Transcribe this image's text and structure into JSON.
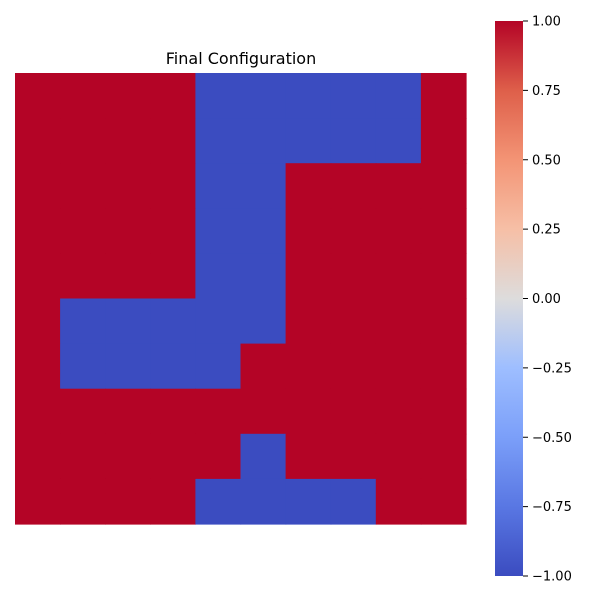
{
  "chart_data": {
    "type": "heatmap",
    "title": "Final Configuration",
    "xlabel": "",
    "ylabel": "",
    "grid": [
      [
        1,
        1,
        1,
        1,
        -1,
        -1,
        -1,
        -1,
        -1,
        1
      ],
      [
        1,
        1,
        1,
        1,
        -1,
        -1,
        -1,
        -1,
        -1,
        1
      ],
      [
        1,
        1,
        1,
        1,
        -1,
        -1,
        1,
        1,
        1,
        1
      ],
      [
        1,
        1,
        1,
        1,
        -1,
        -1,
        1,
        1,
        1,
        1
      ],
      [
        1,
        1,
        1,
        1,
        -1,
        -1,
        1,
        1,
        1,
        1
      ],
      [
        1,
        -1,
        -1,
        -1,
        -1,
        -1,
        1,
        1,
        1,
        1
      ],
      [
        1,
        -1,
        -1,
        -1,
        -1,
        1,
        1,
        1,
        1,
        1
      ],
      [
        1,
        1,
        1,
        1,
        1,
        1,
        1,
        1,
        1,
        1
      ],
      [
        1,
        1,
        1,
        1,
        1,
        -1,
        1,
        1,
        1,
        1
      ],
      [
        1,
        1,
        1,
        1,
        -1,
        -1,
        -1,
        -1,
        1,
        1
      ]
    ],
    "value_range": [
      -1,
      1
    ],
    "colormap": "coolwarm",
    "colors": {
      "low": "#3b4cc0",
      "high": "#b40426"
    },
    "colorbar": {
      "ticks": [
        1.0,
        0.75,
        0.5,
        0.25,
        0.0,
        -0.25,
        -0.5,
        -0.75,
        -1.0
      ],
      "tick_labels": [
        "1.00",
        "0.75",
        "0.50",
        "0.25",
        "0.00",
        "−0.25",
        "−0.50",
        "−0.75",
        "−1.00"
      ]
    },
    "axes_visible": false,
    "grid_lines": false
  }
}
